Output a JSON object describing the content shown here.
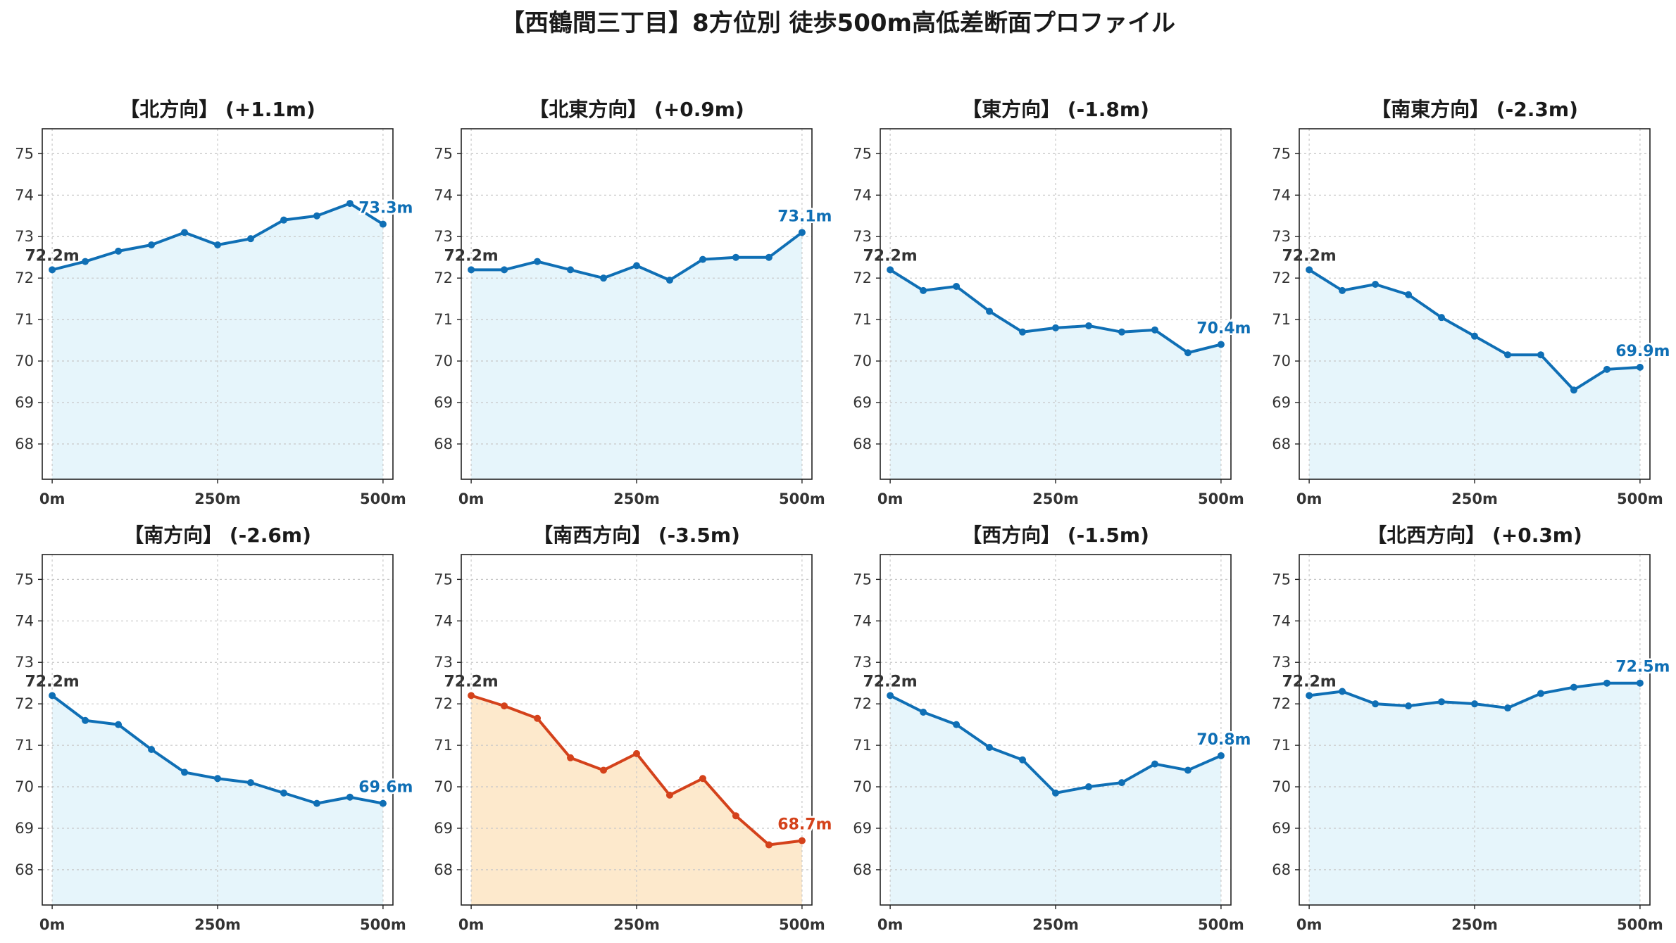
{
  "figure": {
    "title": "【西鶴間三丁目】8方位別 徒歩500m高低差断面プロファイル"
  },
  "colors": {
    "normal_line": "#0f6fb5",
    "normal_fill": "#e6f5fb",
    "highlight_line": "#d4421b",
    "highlight_fill": "#fde9cc"
  },
  "chart_data": [
    {
      "type": "area",
      "title": "【北方向】 (+1.1m)",
      "highlight": false,
      "x": [
        0,
        50,
        100,
        150,
        200,
        250,
        300,
        350,
        400,
        450,
        500
      ],
      "y": [
        72.2,
        72.4,
        72.65,
        72.8,
        73.1,
        72.8,
        72.95,
        73.4,
        73.5,
        73.8,
        73.3
      ],
      "start_label": "72.2m",
      "end_label": "73.3m",
      "xticks": [
        "0m",
        "250m",
        "500m"
      ],
      "yticks": [
        68,
        69,
        70,
        71,
        72,
        73,
        74,
        75
      ],
      "xlim": [
        -15,
        515
      ],
      "ylim": [
        67.15,
        75.6
      ],
      "grid": true
    },
    {
      "type": "area",
      "title": "【北東方向】 (+0.9m)",
      "highlight": false,
      "x": [
        0,
        50,
        100,
        150,
        200,
        250,
        300,
        350,
        400,
        450,
        500
      ],
      "y": [
        72.2,
        72.2,
        72.4,
        72.2,
        72.0,
        72.3,
        71.95,
        72.45,
        72.5,
        72.5,
        73.1
      ],
      "start_label": "72.2m",
      "end_label": "73.1m",
      "xticks": [
        "0m",
        "250m",
        "500m"
      ],
      "yticks": [
        68,
        69,
        70,
        71,
        72,
        73,
        74,
        75
      ],
      "xlim": [
        -15,
        515
      ],
      "ylim": [
        67.15,
        75.6
      ],
      "grid": true
    },
    {
      "type": "area",
      "title": "【東方向】 (-1.8m)",
      "highlight": false,
      "x": [
        0,
        50,
        100,
        150,
        200,
        250,
        300,
        350,
        400,
        450,
        500
      ],
      "y": [
        72.2,
        71.7,
        71.8,
        71.2,
        70.7,
        70.8,
        70.85,
        70.7,
        70.75,
        70.2,
        70.4
      ],
      "start_label": "72.2m",
      "end_label": "70.4m",
      "xticks": [
        "0m",
        "250m",
        "500m"
      ],
      "yticks": [
        68,
        69,
        70,
        71,
        72,
        73,
        74,
        75
      ],
      "xlim": [
        -15,
        515
      ],
      "ylim": [
        67.15,
        75.6
      ],
      "grid": true
    },
    {
      "type": "area",
      "title": "【南東方向】 (-2.3m)",
      "highlight": false,
      "x": [
        0,
        50,
        100,
        150,
        200,
        250,
        300,
        350,
        400,
        450,
        500
      ],
      "y": [
        72.2,
        71.7,
        71.85,
        71.6,
        71.05,
        70.6,
        70.15,
        70.15,
        69.3,
        69.8,
        69.85
      ],
      "start_label": "72.2m",
      "end_label": "69.9m",
      "xticks": [
        "0m",
        "250m",
        "500m"
      ],
      "yticks": [
        68,
        69,
        70,
        71,
        72,
        73,
        74,
        75
      ],
      "xlim": [
        -15,
        515
      ],
      "ylim": [
        67.15,
        75.6
      ],
      "grid": true
    },
    {
      "type": "area",
      "title": "【南方向】 (-2.6m)",
      "highlight": false,
      "x": [
        0,
        50,
        100,
        150,
        200,
        250,
        300,
        350,
        400,
        450,
        500
      ],
      "y": [
        72.2,
        71.6,
        71.5,
        70.9,
        70.35,
        70.2,
        70.1,
        69.85,
        69.6,
        69.75,
        69.6
      ],
      "start_label": "72.2m",
      "end_label": "69.6m",
      "xticks": [
        "0m",
        "250m",
        "500m"
      ],
      "yticks": [
        68,
        69,
        70,
        71,
        72,
        73,
        74,
        75
      ],
      "xlim": [
        -15,
        515
      ],
      "ylim": [
        67.15,
        75.6
      ],
      "grid": true
    },
    {
      "type": "area",
      "title": "【南西方向】 (-3.5m)",
      "highlight": true,
      "x": [
        0,
        50,
        100,
        150,
        200,
        250,
        300,
        350,
        400,
        450,
        500
      ],
      "y": [
        72.2,
        71.95,
        71.65,
        70.7,
        70.4,
        70.8,
        69.8,
        70.2,
        69.3,
        68.6,
        68.7
      ],
      "start_label": "72.2m",
      "end_label": "68.7m",
      "xticks": [
        "0m",
        "250m",
        "500m"
      ],
      "yticks": [
        68,
        69,
        70,
        71,
        72,
        73,
        74,
        75
      ],
      "xlim": [
        -15,
        515
      ],
      "ylim": [
        67.15,
        75.6
      ],
      "grid": true
    },
    {
      "type": "area",
      "title": "【西方向】 (-1.5m)",
      "highlight": false,
      "x": [
        0,
        50,
        100,
        150,
        200,
        250,
        300,
        350,
        400,
        450,
        500
      ],
      "y": [
        72.2,
        71.8,
        71.5,
        70.95,
        70.65,
        69.85,
        70.0,
        70.1,
        70.55,
        70.4,
        70.75
      ],
      "start_label": "72.2m",
      "end_label": "70.8m",
      "xticks": [
        "0m",
        "250m",
        "500m"
      ],
      "yticks": [
        68,
        69,
        70,
        71,
        72,
        73,
        74,
        75
      ],
      "xlim": [
        -15,
        515
      ],
      "ylim": [
        67.15,
        75.6
      ],
      "grid": true
    },
    {
      "type": "area",
      "title": "【北西方向】 (+0.3m)",
      "highlight": false,
      "x": [
        0,
        50,
        100,
        150,
        200,
        250,
        300,
        350,
        400,
        450,
        500
      ],
      "y": [
        72.2,
        72.3,
        72.0,
        71.95,
        72.05,
        72.0,
        71.9,
        72.25,
        72.4,
        72.5,
        72.5
      ],
      "start_label": "72.2m",
      "end_label": "72.5m",
      "xticks": [
        "0m",
        "250m",
        "500m"
      ],
      "yticks": [
        68,
        69,
        70,
        71,
        72,
        73,
        74,
        75
      ],
      "xlim": [
        -15,
        515
      ],
      "ylim": [
        67.15,
        75.6
      ],
      "grid": true
    }
  ]
}
